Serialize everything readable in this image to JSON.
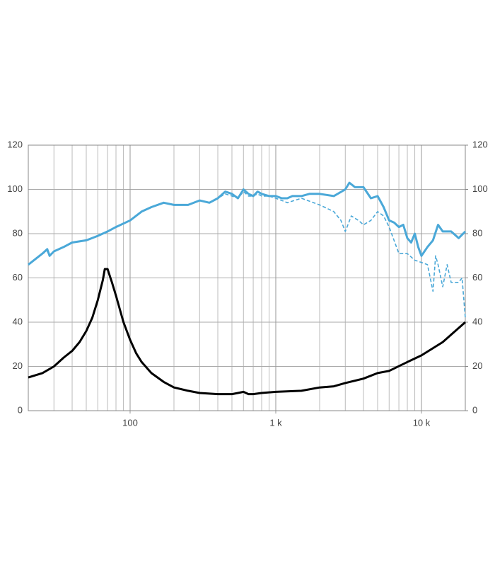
{
  "chart_data": {
    "type": "line",
    "x_scale": "log",
    "grid": true,
    "xlim": [
      20,
      20000
    ],
    "xticks": [
      {
        "value": 100,
        "label": "100"
      },
      {
        "value": 1000,
        "label": "1 k"
      },
      {
        "value": 10000,
        "label": "10 k"
      }
    ],
    "ylim": [
      0,
      120
    ],
    "yticks": [
      0,
      20,
      40,
      60,
      80,
      100,
      120
    ],
    "y2lim": [
      0,
      120
    ],
    "y2ticks": [
      0,
      20,
      40,
      60,
      80,
      100,
      120
    ],
    "series": [
      {
        "color": "#4aa8d8",
        "line_style": "solid",
        "x": [
          20,
          25,
          27,
          28,
          30,
          35,
          40,
          50,
          60,
          70,
          80,
          100,
          120,
          140,
          170,
          200,
          250,
          300,
          350,
          400,
          450,
          500,
          550,
          600,
          650,
          700,
          750,
          800,
          900,
          1000,
          1100,
          1200,
          1300,
          1500,
          1700,
          2000,
          2500,
          3000,
          3200,
          3500,
          4000,
          4500,
          5000,
          5500,
          6000,
          6500,
          7000,
          7500,
          8000,
          8500,
          9000,
          9500,
          10000,
          11000,
          12000,
          13000,
          14000,
          16000,
          18000,
          20000
        ],
        "values": [
          66,
          71,
          73,
          70,
          72,
          74,
          76,
          77,
          79,
          81,
          83,
          86,
          90,
          92,
          94,
          93,
          93,
          95,
          94,
          96,
          99,
          98,
          96,
          100,
          98,
          97,
          99,
          98,
          97,
          97,
          96,
          96,
          97,
          97,
          98,
          98,
          97,
          100,
          103,
          101,
          101,
          96,
          97,
          92,
          86,
          85,
          83,
          84,
          78,
          76,
          80,
          74,
          70,
          74,
          77,
          84,
          81,
          81,
          78,
          81
        ]
      },
      {
        "color": "#4aa8d8",
        "line_style": "dashed",
        "x": [
          20,
          25,
          27,
          28,
          30,
          35,
          40,
          50,
          60,
          70,
          80,
          100,
          120,
          140,
          170,
          200,
          250,
          300,
          350,
          400,
          450,
          500,
          550,
          600,
          650,
          700,
          750,
          800,
          900,
          1000,
          1100,
          1200,
          1500,
          2000,
          2500,
          2800,
          3000,
          3300,
          3700,
          4000,
          4500,
          5000,
          5500,
          6000,
          7000,
          8000,
          9000,
          10000,
          11000,
          12000,
          12500,
          13000,
          14000,
          15000,
          16000,
          18000,
          19000,
          20000
        ],
        "values": [
          66,
          71,
          72,
          70,
          72,
          74,
          76,
          77,
          79,
          81,
          83,
          86,
          90,
          92,
          94,
          93,
          93,
          95,
          94,
          96,
          98,
          97,
          96,
          99,
          97,
          97,
          98,
          97,
          97,
          96,
          95,
          94,
          96,
          93,
          90,
          86,
          81,
          88,
          86,
          84,
          86,
          90,
          88,
          83,
          71,
          71,
          68,
          67,
          66,
          54,
          70,
          66,
          56,
          66,
          58,
          58,
          60,
          42
        ]
      },
      {
        "color": "#000000",
        "line_style": "solid",
        "x": [
          20,
          25,
          30,
          35,
          40,
          45,
          50,
          55,
          60,
          65,
          67,
          70,
          75,
          80,
          90,
          100,
          110,
          120,
          140,
          170,
          200,
          250,
          300,
          400,
          500,
          550,
          600,
          650,
          700,
          800,
          1000,
          1500,
          2000,
          2500,
          3000,
          4000,
          5000,
          6000,
          8000,
          10000,
          14000,
          20000
        ],
        "values": [
          15,
          17,
          20,
          24,
          27,
          31,
          36,
          42,
          50,
          59,
          64,
          64,
          58,
          52,
          40,
          32,
          26,
          22,
          17,
          13,
          10.5,
          9,
          8,
          7.5,
          7.5,
          8,
          8.5,
          7.5,
          7.5,
          8,
          8.5,
          9,
          10.5,
          11,
          12.5,
          14.5,
          17,
          18,
          22,
          25,
          31,
          40
        ]
      }
    ]
  }
}
